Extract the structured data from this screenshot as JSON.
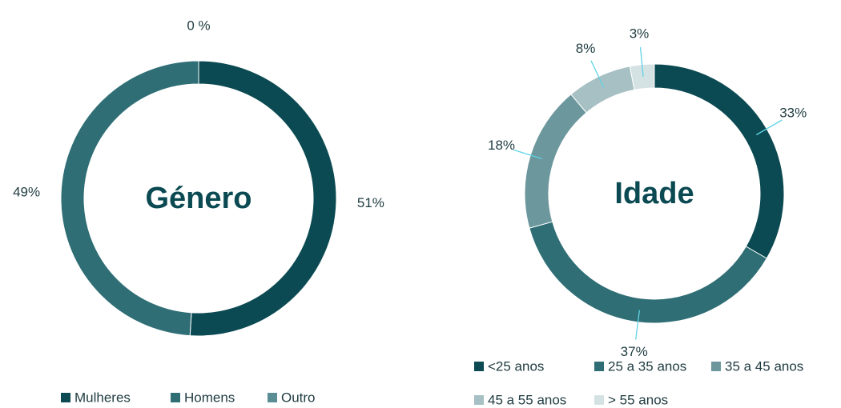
{
  "chart_data": [
    {
      "type": "pie",
      "title": "Género",
      "categories": [
        "Mulheres",
        "Homens",
        "Outro"
      ],
      "values": [
        51,
        49,
        0
      ],
      "value_labels": [
        "51%",
        "49%",
        "0 %"
      ],
      "colors": [
        "#0b4a52",
        "#2f6e75",
        "#5a8e94"
      ]
    },
    {
      "type": "pie",
      "title": "Idade",
      "categories": [
        "<25 anos",
        "25 a 35 anos",
        "35 a 45 anos",
        "45 a 55 anos",
        "> 55 anos"
      ],
      "values": [
        33,
        37,
        18,
        8,
        3
      ],
      "value_labels": [
        "33%",
        "37%",
        "18%",
        "8%",
        "3%"
      ],
      "colors": [
        "#0b4a52",
        "#2f6e75",
        "#6c979c",
        "#a6c0c3",
        "#d5e2e3"
      ]
    }
  ]
}
